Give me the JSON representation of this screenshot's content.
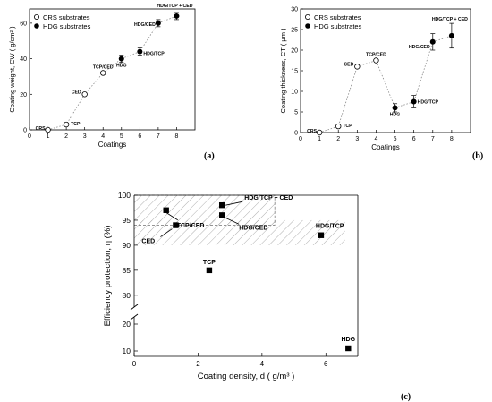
{
  "chart_data": [
    {
      "type": "scatter",
      "panel_label": "(a)",
      "xlabel": "Coatings",
      "ylabel": "Coating weight, CW  ( g/cm² )",
      "xlim": [
        0,
        9
      ],
      "ylim": [
        0,
        68
      ],
      "xticks": [
        "0",
        "1",
        "2",
        "3",
        "4",
        "5",
        "6",
        "7",
        "8"
      ],
      "yticks": [
        "0",
        "20",
        "40",
        "60"
      ],
      "ytick_values": [
        0,
        20,
        40,
        60
      ],
      "legend": [
        "CRS substrates",
        "HDG substrates"
      ],
      "legend_position": "top-left",
      "series": [
        {
          "name": "CRS substrates",
          "marker": "open-circle",
          "points": [
            {
              "x": 1,
              "y": 0,
              "label": "CRS"
            },
            {
              "x": 2,
              "y": 3,
              "label": "TCP"
            },
            {
              "x": 3,
              "y": 20,
              "label": "CED"
            },
            {
              "x": 4,
              "y": 32,
              "label": "TCP/CED"
            }
          ]
        },
        {
          "name": "HDG substrates",
          "marker": "filled-circle",
          "points": [
            {
              "x": 5,
              "y": 40,
              "err": 2,
              "label": "HDG"
            },
            {
              "x": 6,
              "y": 44,
              "err": 2,
              "label": "HDG/TCP"
            },
            {
              "x": 7,
              "y": 60,
              "err": 2,
              "label": "HDG/CED"
            },
            {
              "x": 8,
              "y": 64,
              "err": 2,
              "label": "HDG/TCP + CED"
            }
          ]
        }
      ],
      "trend": {
        "style": "dotted",
        "x": [
          1,
          2,
          3,
          4,
          5,
          6,
          7,
          8
        ],
        "y": [
          0,
          3,
          20,
          32,
          40,
          44,
          60,
          64
        ]
      }
    },
    {
      "type": "scatter",
      "panel_label": "(b)",
      "xlabel": "Coatings",
      "ylabel": "Coating thickness, CT  ( μm )",
      "xlim": [
        0,
        9
      ],
      "ylim": [
        0,
        30
      ],
      "xticks": [
        "0",
        "1",
        "2",
        "3",
        "4",
        "5",
        "6",
        "7",
        "8"
      ],
      "yticks": [
        "0",
        "5",
        "10",
        "15",
        "20",
        "25",
        "30"
      ],
      "ytick_values": [
        0,
        5,
        10,
        15,
        20,
        25,
        30
      ],
      "legend": [
        "CRS substrates",
        "HDG substrates"
      ],
      "legend_position": "top-left",
      "series": [
        {
          "name": "CRS substrates",
          "marker": "open-circle",
          "points": [
            {
              "x": 1,
              "y": 0,
              "label": "CRS"
            },
            {
              "x": 2,
              "y": 1.5,
              "label": "TCP"
            },
            {
              "x": 3,
              "y": 16,
              "label": "CED"
            },
            {
              "x": 4,
              "y": 17.5,
              "label": "TCP/CED"
            }
          ]
        },
        {
          "name": "HDG substrates",
          "marker": "filled-circle",
          "points": [
            {
              "x": 5,
              "y": 6,
              "err": 1,
              "label": "HDG"
            },
            {
              "x": 6,
              "y": 7.5,
              "err": 1.5,
              "label": "HDG/TCP"
            },
            {
              "x": 7,
              "y": 22,
              "err": 2,
              "label": "HDG/CED"
            },
            {
              "x": 8,
              "y": 23.5,
              "err": 3,
              "label": "HDG/TCP + CED"
            }
          ]
        }
      ],
      "trend": {
        "style": "dotted",
        "x": [
          1,
          2,
          3,
          4,
          5,
          6,
          7,
          8
        ],
        "y": [
          0,
          1.5,
          16,
          17.5,
          6,
          7.5,
          22,
          23.5
        ]
      }
    },
    {
      "type": "scatter",
      "panel_label": "(c)",
      "xlabel": "Coating density, d  ( g/m³ )",
      "ylabel": "Efficiency protection, η (%)",
      "xlim": [
        0,
        7
      ],
      "y_axis_break": {
        "lower": [
          8,
          22
        ],
        "upper": [
          78,
          100
        ]
      },
      "xticks": [
        "0",
        "2",
        "4",
        "6"
      ],
      "xtick_values": [
        0,
        2,
        4,
        6
      ],
      "yticks": [
        "10",
        "20",
        "80",
        "85",
        "90",
        "95",
        "100"
      ],
      "ytick_values": [
        10,
        20,
        80,
        85,
        90,
        95,
        100
      ],
      "series": [
        {
          "marker": "filled-square",
          "points": [
            {
              "x": 6.7,
              "y": 11,
              "label": "HDG"
            },
            {
              "x": 2.35,
              "y": 85,
              "label": "TCP"
            },
            {
              "x": 1.3,
              "y": 94,
              "label": "CED"
            },
            {
              "x": 1.0,
              "y": 97,
              "label": "TCP/CED"
            },
            {
              "x": 2.75,
              "y": 96,
              "label": "HDG/CED"
            },
            {
              "x": 2.75,
              "y": 98,
              "label": "HDG/TCP + CED"
            },
            {
              "x": 5.85,
              "y": 92,
              "label": "HDG/TCP"
            }
          ]
        }
      ],
      "shaded_regions": [
        {
          "x": [
            0,
            4.4
          ],
          "y": [
            94,
            100
          ]
        },
        {
          "x": [
            0,
            6.6
          ],
          "y": [
            90,
            95
          ]
        }
      ]
    }
  ]
}
